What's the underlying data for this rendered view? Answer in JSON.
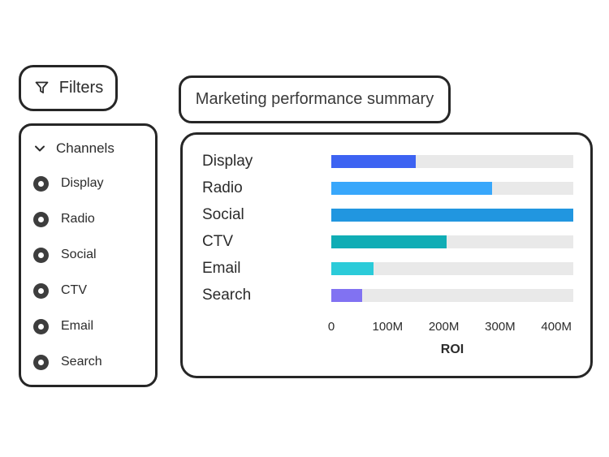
{
  "filters": {
    "label": "Filters"
  },
  "channels": {
    "header": "Channels",
    "items": [
      {
        "label": "Display",
        "selected": true
      },
      {
        "label": "Radio",
        "selected": true
      },
      {
        "label": "Social",
        "selected": true
      },
      {
        "label": "CTV",
        "selected": true
      },
      {
        "label": "Email",
        "selected": true
      },
      {
        "label": "Search",
        "selected": true
      }
    ]
  },
  "chart_card": {
    "title": "Marketing performance summary"
  },
  "chart_data": {
    "type": "bar",
    "orientation": "horizontal",
    "title": "Marketing performance summary",
    "categories": [
      "Display",
      "Radio",
      "Social",
      "CTV",
      "Email",
      "Search"
    ],
    "values": [
      150,
      285,
      430,
      205,
      75,
      55
    ],
    "value_unit": "M",
    "xlabel": "ROI",
    "xlim": [
      0,
      430
    ],
    "xticks": [
      0,
      100,
      200,
      300,
      400
    ],
    "xtick_labels": [
      "0",
      "100M",
      "200M",
      "300M",
      "400M"
    ],
    "bar_colors": [
      "#3d63f2",
      "#38a7fb",
      "#2196e0",
      "#10adb5",
      "#2bcbd9",
      "#8172f2"
    ],
    "track_color": "#e9e9e9",
    "grid": false,
    "legend": false
  },
  "colors": {
    "border": "#262626",
    "text": "#2b2b2b",
    "radio_fill": "#3d3d3d",
    "background": "#ffffff"
  }
}
